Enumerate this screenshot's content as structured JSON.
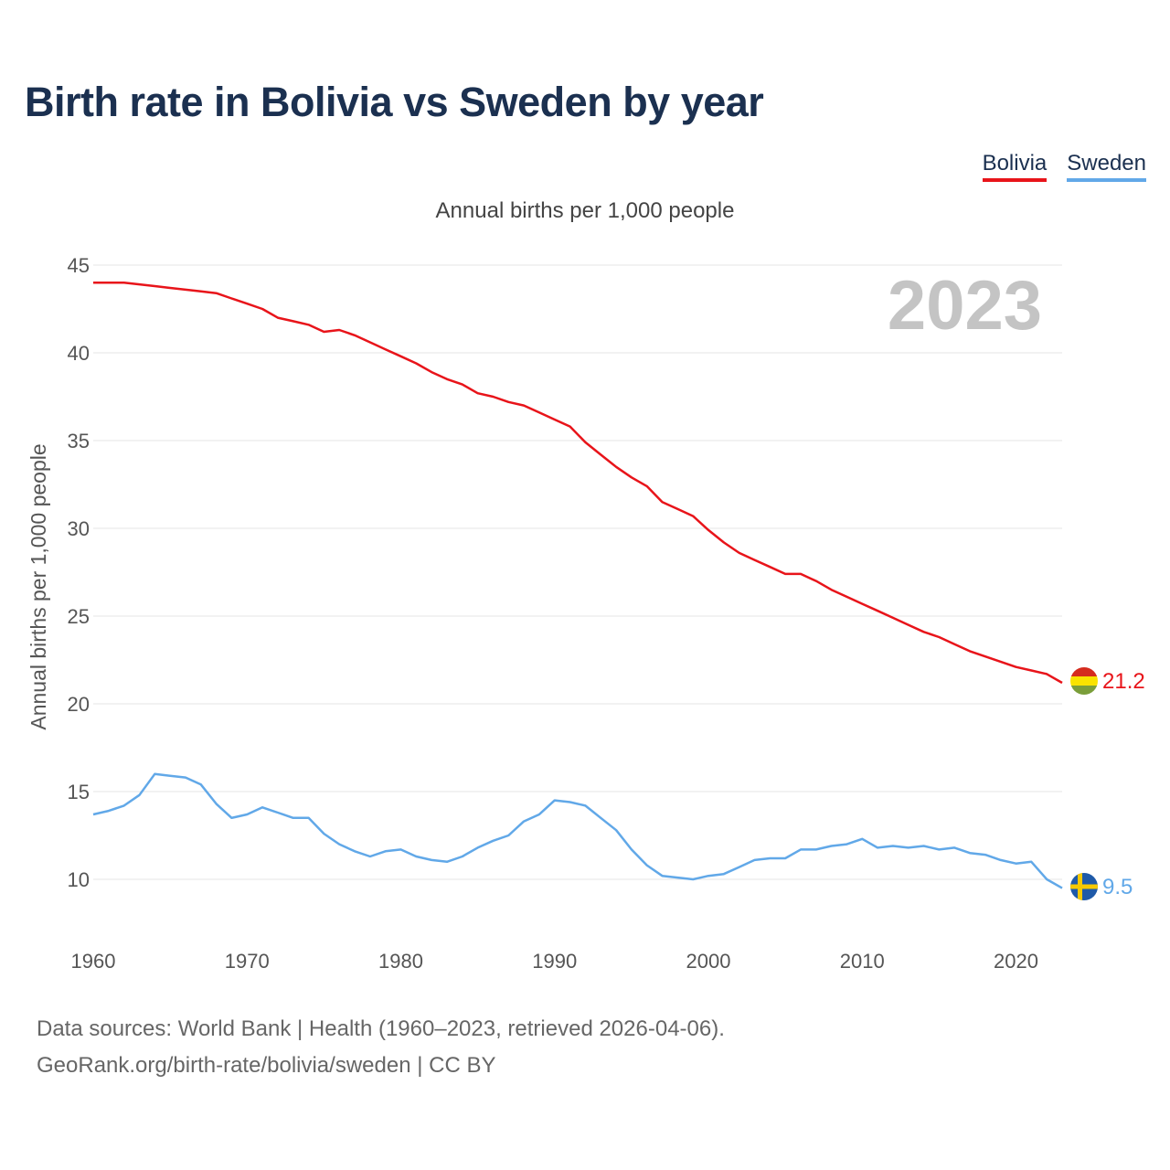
{
  "title": "Birth rate in Bolivia vs Sweden by year",
  "legend": [
    {
      "name": "Bolivia",
      "color": "#e8141a"
    },
    {
      "name": "Sweden",
      "color": "#61a8e8"
    }
  ],
  "footer": {
    "line1": "Data sources: World Bank | Health (1960–2023, retrieved 2026-04-06).",
    "line2": "GeoRank.org/birth-rate/bolivia/sweden | CC BY"
  },
  "chart_data": {
    "type": "line",
    "title": "Birth rate in Bolivia vs Sweden by year",
    "subtitle": "Annual births per 1,000 people",
    "xlabel": "",
    "ylabel": "Annual births per 1,000 people",
    "year_label": "2023",
    "xlim": [
      1960,
      2023
    ],
    "ylim": [
      7,
      45
    ],
    "xticks": [
      1960,
      1970,
      1980,
      1990,
      2000,
      2010,
      2020
    ],
    "yticks": [
      10,
      15,
      20,
      25,
      30,
      35,
      40,
      45
    ],
    "grid": true,
    "legend_position": "top-right",
    "x": [
      1960,
      1961,
      1962,
      1963,
      1964,
      1965,
      1966,
      1967,
      1968,
      1969,
      1970,
      1971,
      1972,
      1973,
      1974,
      1975,
      1976,
      1977,
      1978,
      1979,
      1980,
      1981,
      1982,
      1983,
      1984,
      1985,
      1986,
      1987,
      1988,
      1989,
      1990,
      1991,
      1992,
      1993,
      1994,
      1995,
      1996,
      1997,
      1998,
      1999,
      2000,
      2001,
      2002,
      2003,
      2004,
      2005,
      2006,
      2007,
      2008,
      2009,
      2010,
      2011,
      2012,
      2013,
      2014,
      2015,
      2016,
      2017,
      2018,
      2019,
      2020,
      2021,
      2022,
      2023
    ],
    "series": [
      {
        "name": "Bolivia",
        "color": "#e8141a",
        "end_label": "21.2",
        "values": [
          44.0,
          44.0,
          44.0,
          43.9,
          43.8,
          43.7,
          43.6,
          43.5,
          43.4,
          43.1,
          42.8,
          42.5,
          42.0,
          41.8,
          41.6,
          41.2,
          41.3,
          41.0,
          40.6,
          40.2,
          39.8,
          39.4,
          38.9,
          38.5,
          38.2,
          37.7,
          37.5,
          37.2,
          37.0,
          36.6,
          36.2,
          35.8,
          34.9,
          34.2,
          33.5,
          32.9,
          32.4,
          31.5,
          31.1,
          30.7,
          29.9,
          29.2,
          28.6,
          28.2,
          27.8,
          27.4,
          27.4,
          27.0,
          26.5,
          26.1,
          25.7,
          25.3,
          24.9,
          24.5,
          24.1,
          23.8,
          23.4,
          23.0,
          22.7,
          22.4,
          22.1,
          21.9,
          21.7,
          21.2
        ]
      },
      {
        "name": "Sweden",
        "color": "#61a8e8",
        "end_label": "9.5",
        "values": [
          13.7,
          13.9,
          14.2,
          14.8,
          16.0,
          15.9,
          15.8,
          15.4,
          14.3,
          13.5,
          13.7,
          14.1,
          13.8,
          13.5,
          13.5,
          12.6,
          12.0,
          11.6,
          11.3,
          11.6,
          11.7,
          11.3,
          11.1,
          11.0,
          11.3,
          11.8,
          12.2,
          12.5,
          13.3,
          13.7,
          14.5,
          14.4,
          14.2,
          13.5,
          12.8,
          11.7,
          10.8,
          10.2,
          10.1,
          10.0,
          10.2,
          10.3,
          10.7,
          11.1,
          11.2,
          11.2,
          11.7,
          11.7,
          11.9,
          12.0,
          12.3,
          11.8,
          11.9,
          11.8,
          11.9,
          11.7,
          11.8,
          11.5,
          11.4,
          11.1,
          10.9,
          11.0,
          10.0,
          9.5
        ]
      }
    ]
  }
}
